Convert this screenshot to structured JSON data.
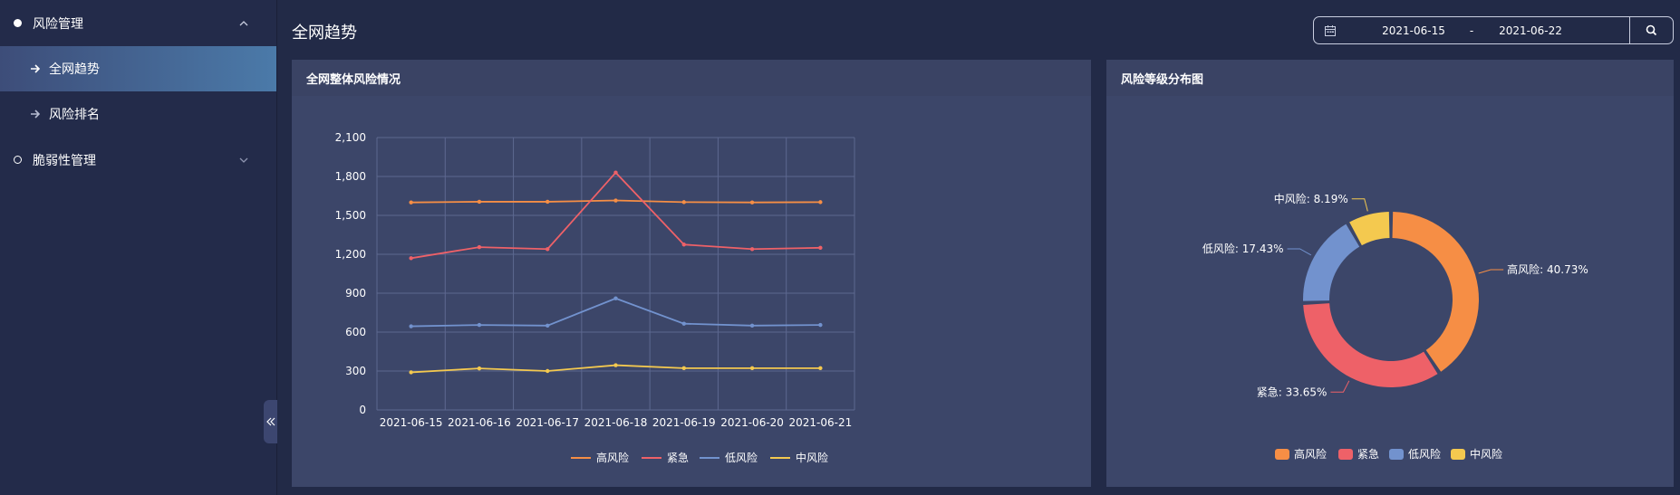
{
  "sidebar": {
    "groups": [
      {
        "label": "风险管理",
        "expanded": true,
        "items": [
          {
            "label": "全网趋势",
            "active": true
          },
          {
            "label": "风险排名",
            "active": false
          }
        ]
      },
      {
        "label": "脆弱性管理",
        "expanded": false,
        "items": []
      }
    ]
  },
  "header": {
    "title": "全网趋势",
    "date_start": "2021-06-15",
    "date_separator": "-",
    "date_end": "2021-06-22"
  },
  "panels": {
    "line_title": "全网整体风险情况",
    "pie_title": "风险等级分布图"
  },
  "colors": {
    "high": "#f68e45",
    "urgent": "#ee6168",
    "low": "#7292ce",
    "medium": "#f4c94f"
  },
  "chart_data": [
    {
      "type": "line",
      "title": "",
      "xlabel": "",
      "ylabel": "",
      "categories": [
        "2021-06-15",
        "2021-06-16",
        "2021-06-17",
        "2021-06-18",
        "2021-06-19",
        "2021-06-20",
        "2021-06-21"
      ],
      "y_ticks": [
        "0",
        "300",
        "600",
        "900",
        "1,200",
        "1,500",
        "1,800",
        "2,100"
      ],
      "ylim": [
        0,
        2100
      ],
      "grid": true,
      "legend_position": "bottom",
      "series": [
        {
          "name": "高风险",
          "color": "#f68e45",
          "values": [
            1600,
            1605,
            1605,
            1615,
            1602,
            1600,
            1602
          ]
        },
        {
          "name": "紧急",
          "color": "#ee6168",
          "values": [
            1170,
            1255,
            1240,
            1830,
            1275,
            1240,
            1250
          ]
        },
        {
          "name": "低风险",
          "color": "#7292ce",
          "values": [
            645,
            655,
            650,
            860,
            665,
            650,
            655
          ]
        },
        {
          "name": "中风险",
          "color": "#f4c94f",
          "values": [
            290,
            320,
            300,
            345,
            322,
            322,
            322
          ]
        }
      ]
    },
    {
      "type": "pie",
      "title": "",
      "donut": true,
      "legend_position": "bottom",
      "slices": [
        {
          "name": "高风险",
          "value": 40.73,
          "label": "高风险: 40.73%",
          "color": "#f68e45"
        },
        {
          "name": "紧急",
          "value": 33.65,
          "label": "紧急: 33.65%",
          "color": "#ee6168"
        },
        {
          "name": "低风险",
          "value": 17.43,
          "label": "低风险: 17.43%",
          "color": "#7292ce"
        },
        {
          "name": "中风险",
          "value": 8.19,
          "label": "中风险: 8.19%",
          "color": "#f4c94f"
        }
      ]
    }
  ]
}
